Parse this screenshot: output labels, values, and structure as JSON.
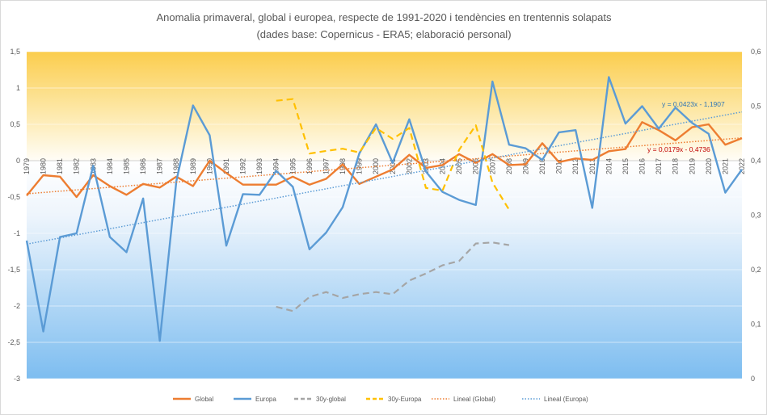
{
  "chart_data": {
    "type": "line",
    "title": "Anomalia primaveral, global i europea, respecte de 1991-2020 i tendències en trentennis solapats",
    "subtitle": "(dades base: Copernicus - ERA5; elaboració personal)",
    "categories": [
      "1979",
      "1980",
      "1981",
      "1982",
      "1983",
      "1984",
      "1985",
      "1986",
      "1987",
      "1988",
      "1989",
      "1990",
      "1991",
      "1992",
      "1993",
      "1994",
      "1995",
      "1996",
      "1997",
      "1998",
      "1999",
      "2000",
      "2001",
      "2002",
      "2003",
      "2004",
      "2005",
      "2006",
      "2007",
      "2008",
      "2009",
      "2010",
      "2011",
      "2012",
      "2013",
      "2014",
      "2015",
      "2016",
      "2017",
      "2018",
      "2019",
      "2020",
      "2021",
      "2022"
    ],
    "y_left": {
      "min": -3,
      "max": 1.5,
      "ticks": [
        "1,5",
        "1",
        "0,5",
        "0",
        "-0,5",
        "-1",
        "-1,5",
        "-2",
        "-2,5",
        "-3"
      ]
    },
    "y_right": {
      "min": 0,
      "max": 0.6,
      "ticks": [
        "0,6",
        "0,5",
        "0,4",
        "0,3",
        "0,2",
        "0,1",
        "0"
      ]
    },
    "series": [
      {
        "name": "Global",
        "axis": "left",
        "color": "#ed7d31",
        "values": [
          -0.48,
          -0.2,
          -0.22,
          -0.5,
          -0.2,
          -0.35,
          -0.47,
          -0.32,
          -0.37,
          -0.22,
          -0.35,
          0.0,
          -0.17,
          -0.33,
          -0.33,
          -0.33,
          -0.22,
          -0.33,
          -0.25,
          -0.05,
          -0.32,
          -0.22,
          -0.12,
          0.08,
          -0.1,
          -0.06,
          0.09,
          -0.03,
          0.09,
          -0.06,
          -0.05,
          0.24,
          -0.02,
          0.03,
          0.01,
          0.13,
          0.16,
          0.53,
          0.42,
          0.28,
          0.46,
          0.5,
          0.22,
          0.31
        ]
      },
      {
        "name": "Europa",
        "axis": "left",
        "color": "#5b9bd5",
        "values": [
          -1.1,
          -2.35,
          -1.05,
          -1.0,
          -0.07,
          -1.05,
          -1.26,
          -0.52,
          -2.48,
          -0.28,
          0.76,
          0.35,
          -1.17,
          -0.46,
          -0.47,
          -0.14,
          -0.36,
          -1.22,
          -0.99,
          -0.64,
          0.1,
          0.5,
          -0.03,
          0.57,
          -0.15,
          -0.43,
          -0.54,
          -0.61,
          1.09,
          0.22,
          0.17,
          0.01,
          0.39,
          0.42,
          -0.65,
          1.15,
          0.51,
          0.75,
          0.44,
          0.73,
          0.52,
          0.37,
          -0.44,
          -0.12
        ]
      },
      {
        "name": "30y-global",
        "axis": "right",
        "color": "#a5a5a5",
        "dash": "dash",
        "x": [
          "1994",
          "1995",
          "1996",
          "1997",
          "1998",
          "1999",
          "2000",
          "2001",
          "2002",
          "2003",
          "2004",
          "2005",
          "2006",
          "2007",
          "2008"
        ],
        "values": [
          0.132,
          0.124,
          0.15,
          0.159,
          0.148,
          0.155,
          0.159,
          0.155,
          0.18,
          0.193,
          0.208,
          0.216,
          0.248,
          0.25,
          0.245
        ]
      },
      {
        "name": "30y-Europa",
        "axis": "right",
        "color": "#ffc000",
        "dash": "dash",
        "x": [
          "1994",
          "1995",
          "1996",
          "1997",
          "1998",
          "1999",
          "2000",
          "2001",
          "2002",
          "2003",
          "2004",
          "2005",
          "2006",
          "2007",
          "2008"
        ],
        "values": [
          0.51,
          0.513,
          0.413,
          0.418,
          0.422,
          0.415,
          0.46,
          0.44,
          0.46,
          0.35,
          0.345,
          0.42,
          0.465,
          0.36,
          0.31
        ]
      },
      {
        "name": "Lineal  (Global)",
        "axis": "left",
        "color": "#ed7d31",
        "dash": "dot",
        "trend": {
          "slope": 0.0179,
          "intercept": -0.4736
        }
      },
      {
        "name": "Lineal  (Europa)",
        "axis": "left",
        "color": "#5b9bd5",
        "dash": "dot",
        "trend": {
          "slope": 0.0423,
          "intercept": -1.1907
        }
      }
    ],
    "equations": [
      {
        "text": "y = 0,0423x - 1,1907",
        "color": "#2e75b6"
      },
      {
        "text": "y = 0,0179x - 0,4736",
        "color": "#c00000"
      }
    ],
    "legend": {
      "position": "bottom"
    },
    "background": {
      "top_color": "#fbcf50",
      "bottom_color": "#7fbdf0"
    }
  }
}
